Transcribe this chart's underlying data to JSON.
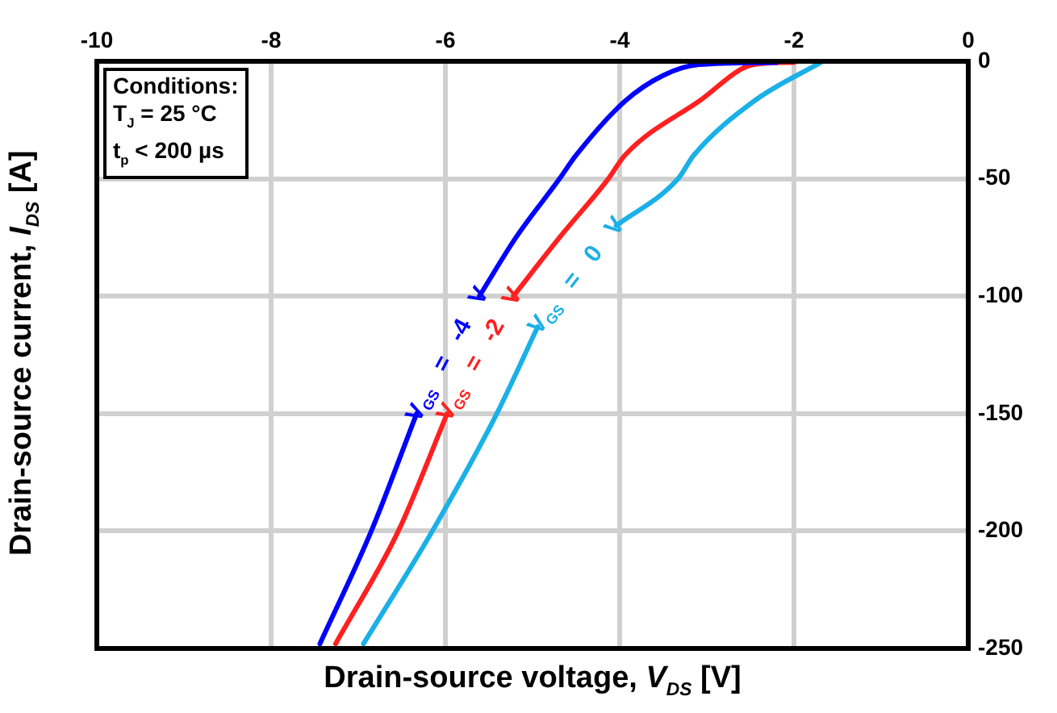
{
  "chart_data": {
    "type": "line",
    "xlabel": "Drain-source voltage, V$_{DS}$ [V]",
    "ylabel": "Drain-source current, I$_{DS}$ [A]",
    "xlim": [
      -10,
      0
    ],
    "xticks": [
      -10,
      -8,
      -6,
      -4,
      -2,
      0
    ],
    "ylim": [
      -250,
      0
    ],
    "yticks": [
      -250,
      -200,
      -150,
      -100,
      -50,
      0
    ],
    "grid": true,
    "legend": false,
    "marker": "none",
    "line_style": "solid",
    "series": [
      {
        "name": "V$_{GS}$ = -4 V",
        "color": "#0000ff",
        "x": [
          -2.2,
          -3.09,
          -3.5,
          -3.94,
          -4.5,
          -4.69,
          -5.19,
          -5.61,
          -6.0,
          -6.33,
          -6.85,
          -7.44
        ],
        "values": [
          -0.5,
          -1.4,
          -6,
          -17,
          -40,
          -50,
          -75,
          -100,
          null,
          -150,
          -200,
          -248
        ]
      },
      {
        "name": "V$_{GS}$ = -2 V",
        "color": "#ff2020",
        "x": [
          -2.0,
          -2.46,
          -3.09,
          -3.94,
          -4.13,
          -4.69,
          -5.22,
          -5.6,
          -5.98,
          -6.54,
          -7.26
        ],
        "values": [
          -0.5,
          -1.4,
          -17,
          -40,
          -50,
          -75,
          -100,
          null,
          -150,
          -200,
          -248
        ]
      },
      {
        "name": "V$_{GS}$ = 0 V",
        "color": "#1ab0e8",
        "x": [
          -1.67,
          -2.46,
          -3.15,
          -3.33,
          -4.04,
          -4.5,
          -4.94,
          -5.41,
          -6.15,
          -6.94
        ],
        "values": [
          0,
          -17,
          -40,
          -50,
          -70,
          null,
          -113,
          -150,
          -200,
          -248
        ]
      }
    ],
    "annotations": [
      "Conditions:",
      "T$_{J}$ =  25  °C",
      "t$_{p}$ < 200 µs"
    ]
  }
}
